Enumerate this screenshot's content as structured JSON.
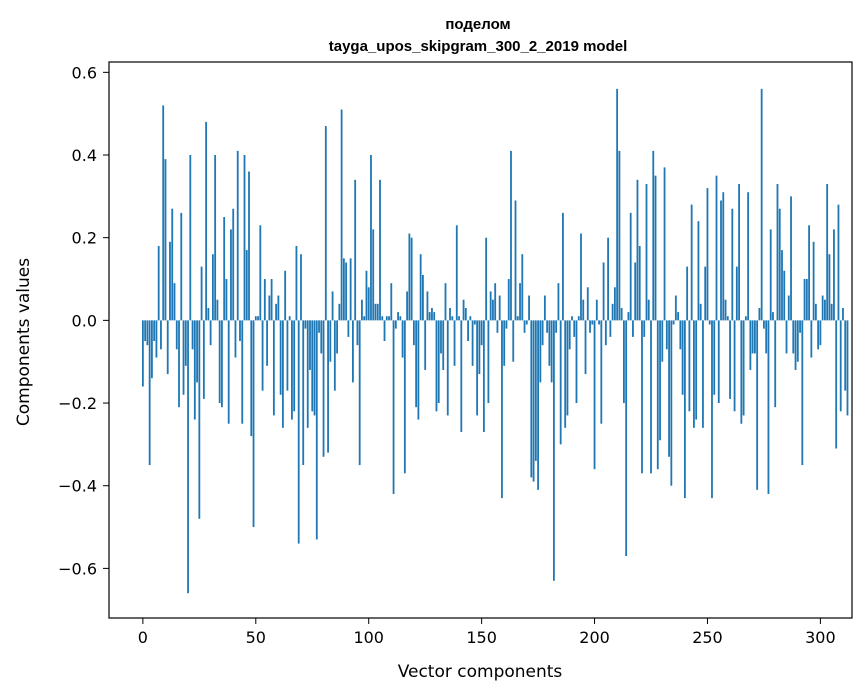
{
  "chart_data": {
    "type": "bar",
    "title_line1": "поделом",
    "title_line2": "tayga_upos_skipgram_300_2_2019 model",
    "xlabel": "Vector components",
    "ylabel": "Components values",
    "xlim": [
      -15,
      314
    ],
    "ylim": [
      -0.72,
      0.625
    ],
    "xticks": [
      0,
      50,
      100,
      150,
      200,
      250,
      300
    ],
    "yticks": [
      -0.6,
      -0.4,
      -0.2,
      0.0,
      0.2,
      0.4,
      0.6
    ],
    "ytick_labels": [
      "−0.6",
      "−0.4",
      "−0.2",
      "0.0",
      "0.2",
      "0.4",
      "0.6"
    ],
    "bar_color": "#1f77b4",
    "values": [
      -0.16,
      -0.05,
      -0.06,
      -0.35,
      -0.14,
      -0.05,
      -0.09,
      0.18,
      -0.07,
      0.52,
      0.39,
      -0.13,
      0.19,
      0.27,
      0.09,
      -0.07,
      -0.21,
      0.26,
      -0.18,
      -0.11,
      -0.66,
      0.4,
      -0.07,
      -0.24,
      -0.15,
      -0.48,
      0.13,
      -0.19,
      0.48,
      0.03,
      -0.06,
      0.16,
      0.4,
      0.05,
      -0.2,
      -0.21,
      0.25,
      0.1,
      -0.25,
      0.22,
      0.27,
      -0.09,
      0.41,
      -0.05,
      -0.25,
      0.4,
      0.17,
      0.36,
      -0.28,
      -0.5,
      0.01,
      0.01,
      0.23,
      -0.17,
      0.1,
      -0.11,
      0.06,
      0.1,
      -0.23,
      0.04,
      0.06,
      -0.18,
      -0.26,
      0.12,
      -0.17,
      0.01,
      -0.24,
      -0.22,
      0.18,
      -0.54,
      0.16,
      -0.35,
      -0.02,
      -0.26,
      -0.12,
      -0.22,
      -0.23,
      -0.53,
      -0.03,
      -0.08,
      -0.33,
      0.47,
      -0.32,
      -0.1,
      0.07,
      -0.17,
      -0.08,
      0.04,
      0.51,
      0.15,
      0.14,
      -0.04,
      0.15,
      -0.15,
      0.34,
      -0.06,
      -0.35,
      0.05,
      0.01,
      0.12,
      0.08,
      0.4,
      0.22,
      0.04,
      0.04,
      0.34,
      0.01,
      -0.05,
      0.01,
      0.01,
      0.09,
      -0.42,
      -0.02,
      0.02,
      0.01,
      -0.09,
      -0.37,
      0.07,
      0.21,
      0.2,
      -0.06,
      -0.21,
      -0.24,
      0.16,
      0.11,
      -0.12,
      0.07,
      0.02,
      0.03,
      0.02,
      -0.22,
      -0.2,
      -0.08,
      -0.12,
      0.09,
      -0.23,
      0.03,
      0.01,
      -0.11,
      0.23,
      0.01,
      -0.27,
      0.05,
      0.03,
      -0.05,
      0.01,
      -0.11,
      -0.01,
      -0.23,
      -0.13,
      -0.06,
      -0.27,
      0.2,
      -0.2,
      0.07,
      0.05,
      0.09,
      -0.03,
      0.06,
      -0.43,
      -0.11,
      -0.02,
      0.1,
      0.41,
      -0.1,
      0.29,
      0.01,
      0.09,
      0.16,
      -0.03,
      -0.01,
      0.06,
      -0.38,
      -0.39,
      -0.34,
      -0.41,
      -0.15,
      -0.06,
      0.06,
      -0.03,
      -0.11,
      -0.15,
      -0.63,
      -0.03,
      0.09,
      -0.3,
      0.26,
      -0.26,
      -0.23,
      -0.07,
      0.01,
      -0.04,
      -0.2,
      0.01,
      0.21,
      0.05,
      -0.13,
      0.08,
      -0.03,
      -0.01,
      -0.36,
      0.05,
      -0.01,
      -0.25,
      0.14,
      -0.06,
      0.2,
      -0.04,
      0.04,
      0.08,
      0.56,
      0.41,
      0.03,
      -0.2,
      -0.57,
      0.02,
      0.26,
      -0.04,
      0.14,
      0.34,
      0.18,
      -0.37,
      -0.04,
      0.33,
      0.05,
      -0.37,
      0.41,
      0.35,
      -0.36,
      -0.29,
      -0.1,
      0.37,
      -0.07,
      -0.33,
      -0.4,
      -0.01,
      0.06,
      0.02,
      -0.07,
      -0.18,
      -0.43,
      0.13,
      -0.22,
      0.28,
      -0.26,
      -0.24,
      0.24,
      0.04,
      -0.26,
      0.13,
      0.32,
      -0.01,
      -0.43,
      -0.18,
      0.35,
      -0.2,
      0.29,
      0.31,
      0.05,
      0.01,
      -0.19,
      0.27,
      -0.22,
      0.13,
      0.33,
      -0.25,
      -0.23,
      0.01,
      0.31,
      -0.12,
      -0.08,
      -0.08,
      -0.41,
      0.03,
      0.56,
      -0.02,
      -0.08,
      -0.42,
      0.22,
      0.02,
      -0.21,
      0.33,
      0.27,
      0.17,
      0.12,
      -0.08,
      0.06,
      0.3,
      -0.08,
      -0.12,
      -0.1,
      -0.03,
      -0.35,
      0.1,
      0.1,
      0.23,
      -0.09,
      0.19,
      0.04,
      -0.07,
      -0.06,
      0.06,
      0.05,
      0.33,
      0.16,
      0.04,
      0.22,
      -0.31,
      0.28,
      -0.22,
      0.03,
      -0.17,
      -0.23
    ]
  }
}
